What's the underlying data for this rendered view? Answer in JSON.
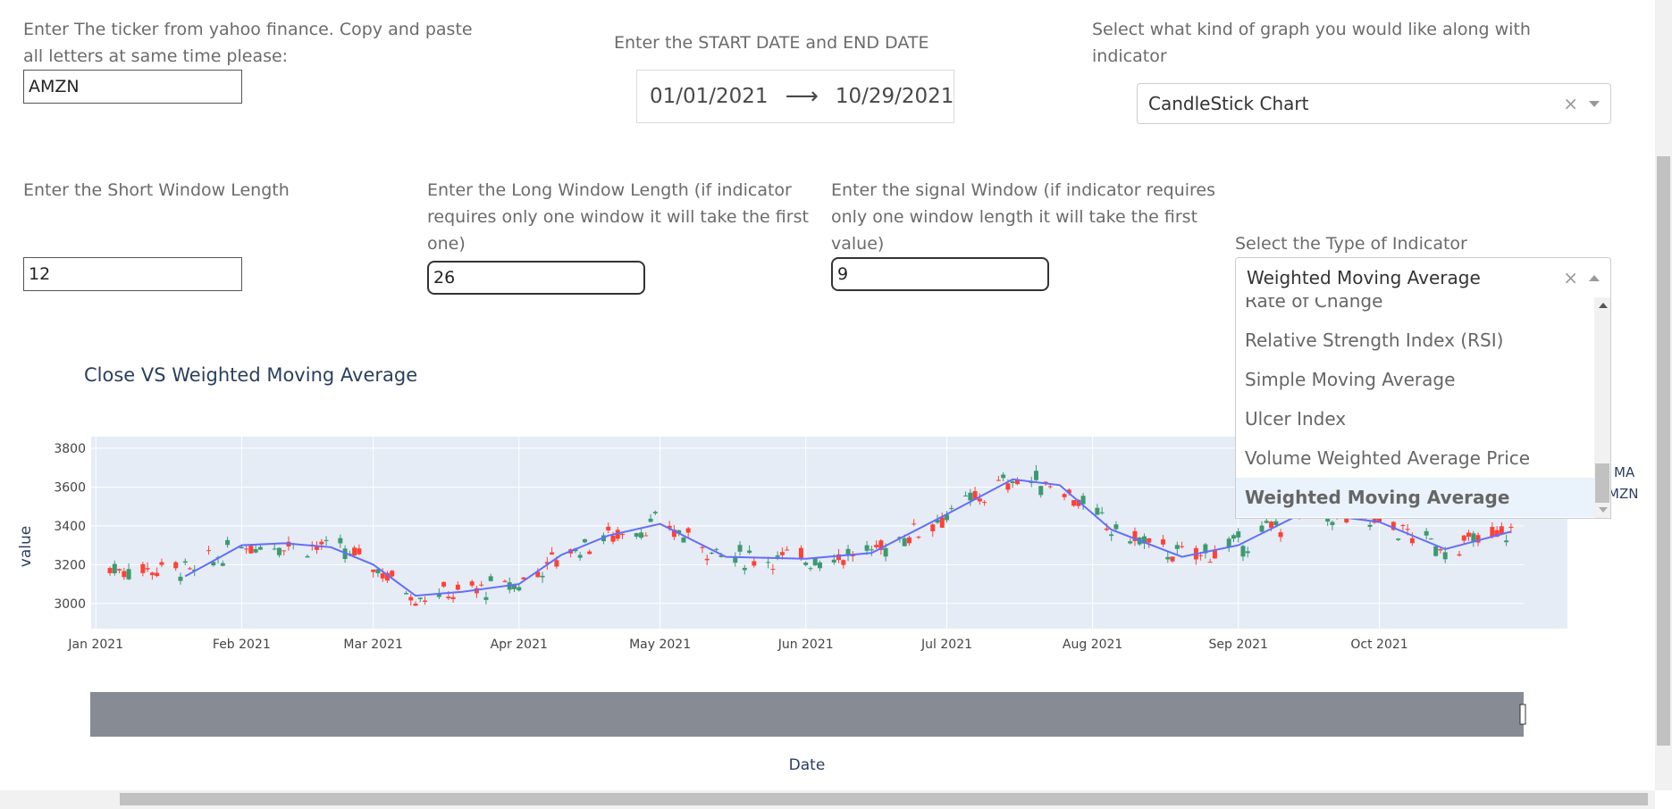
{
  "ticker": {
    "label": "Enter The ticker from yahoo finance. Copy and paste all letters at same time please:",
    "value": "AMZN"
  },
  "dates": {
    "label": "Enter the START DATE and END DATE",
    "start": "01/01/2021",
    "arrow": "⟶",
    "end": "10/29/2021"
  },
  "graph_type": {
    "label": "Select what kind of graph you would like along with indicator",
    "value": "CandleStick Chart",
    "clear": "×"
  },
  "short_window": {
    "label": "Enter the Short Window Length",
    "value": "12"
  },
  "long_window": {
    "label": "Enter the Long Window Length (if indicator requires only one window it will take the first one)",
    "value": "26"
  },
  "signal_window": {
    "label": "Enter the signal Window (if indicator requires only one window length it will take the first value)",
    "value": "9"
  },
  "indicator": {
    "label": "Select the Type of Indicator",
    "value": "Weighted Moving Average",
    "clear": "×",
    "options": [
      "Rate of Change",
      "Relative Strength Index (RSI)",
      "Simple Moving Average",
      "Ulcer Index",
      "Volume Weighted Average Price",
      "Weighted Moving Average"
    ],
    "selected_index": 5
  },
  "chart": {
    "title": "Close VS Weighted Moving Average",
    "ylabel": "value",
    "xlabel": "Date",
    "legend_partial": [
      "MA",
      "MZN"
    ],
    "y_ticks": [
      "3800",
      "3600",
      "3400",
      "3200",
      "3000"
    ],
    "x_ticks": [
      "Jan 2021",
      "Feb 2021",
      "Mar 2021",
      "Apr 2021",
      "May 2021",
      "Jun 2021",
      "Jul 2021",
      "Aug 2021",
      "Sep 2021",
      "Oct 2021"
    ]
  },
  "colors": {
    "increasing": "#3d9970",
    "decreasing": "#ff4136",
    "wma_line": "#636efa",
    "plot_bg": "#e5ecf6",
    "rangeslider": "#868b94"
  },
  "chart_data": {
    "type": "candlestick",
    "title": "Close VS Weighted Moving Average",
    "xlabel": "Date",
    "ylabel": "value",
    "ylim": [
      2870,
      3860
    ],
    "xlim": [
      "2020-12-31",
      "2021-11-10"
    ],
    "grid": true,
    "series": [
      {
        "name": "AMZN",
        "kind": "candlestick",
        "ohlc_sample": [
          {
            "date": "2021-01-04",
            "open": 3270,
            "high": 3272,
            "low": 3144,
            "close": 3186
          },
          {
            "date": "2021-01-15",
            "open": 3160,
            "high": 3180,
            "low": 3100,
            "close": 3104
          },
          {
            "date": "2021-02-02",
            "open": 3380,
            "high": 3434,
            "low": 3320,
            "close": 3380
          },
          {
            "date": "2021-03-05",
            "open": 3000,
            "high": 3002,
            "low": 2881,
            "close": 3000
          },
          {
            "date": "2021-04-29",
            "open": 3505,
            "high": 3554,
            "low": 3460,
            "close": 3471
          },
          {
            "date": "2021-07-08",
            "open": 3700,
            "high": 3762,
            "low": 3680,
            "close": 3731
          },
          {
            "date": "2021-07-30",
            "open": 3340,
            "high": 3355,
            "low": 3300,
            "close": 3327
          },
          {
            "date": "2021-10-04",
            "open": 3200,
            "high": 3240,
            "low": 3176,
            "close": 3189
          },
          {
            "date": "2021-10-29",
            "open": 3300,
            "high": 3420,
            "low": 3273,
            "close": 3372
          }
        ]
      },
      {
        "name": "WMA",
        "kind": "line",
        "x": [
          "2021-01-20",
          "2021-02-01",
          "2021-02-10",
          "2021-02-20",
          "2021-03-01",
          "2021-03-10",
          "2021-03-20",
          "2021-04-01",
          "2021-04-10",
          "2021-04-20",
          "2021-05-01",
          "2021-05-15",
          "2021-06-01",
          "2021-06-15",
          "2021-07-01",
          "2021-07-15",
          "2021-07-25",
          "2021-08-05",
          "2021-08-20",
          "2021-09-01",
          "2021-09-15",
          "2021-10-01",
          "2021-10-15",
          "2021-10-29"
        ],
        "y": [
          3140,
          3300,
          3310,
          3290,
          3200,
          3040,
          3060,
          3100,
          3250,
          3350,
          3410,
          3240,
          3230,
          3260,
          3460,
          3640,
          3610,
          3380,
          3240,
          3300,
          3470,
          3420,
          3280,
          3370
        ]
      }
    ]
  }
}
